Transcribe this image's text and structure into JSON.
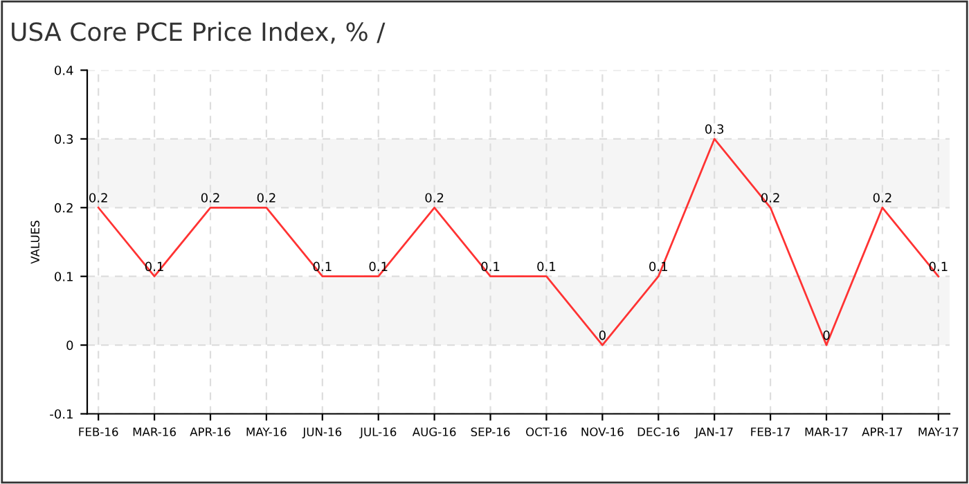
{
  "chart_data": {
    "type": "line",
    "title": "USA Core PCE Price Index, % /",
    "ylabel": "VALUES",
    "categories": [
      "FEB-16",
      "MAR-16",
      "APR-16",
      "MAY-16",
      "JUN-16",
      "JUL-16",
      "AUG-16",
      "SEP-16",
      "OCT-16",
      "NOV-16",
      "DEC-16",
      "JAN-17",
      "FEB-17",
      "MAR-17",
      "APR-17",
      "MAY-17"
    ],
    "series": [
      {
        "color": "#ff3333",
        "values": [
          0.2,
          0.1,
          0.2,
          0.2,
          0.1,
          0.1,
          0.2,
          0.1,
          0.1,
          0,
          0.1,
          0.3,
          0.2,
          0,
          0.2,
          0.1
        ]
      }
    ],
    "ylim": [
      -0.1,
      0.4
    ],
    "yticks": [
      -0.1,
      0,
      0.1,
      0.2,
      0.3,
      0.4
    ],
    "bands": [
      {
        "axis": "y",
        "from": 0,
        "to": 0.1,
        "color": "#f5f5f5"
      },
      {
        "axis": "y",
        "from": 0.2,
        "to": 0.3,
        "color": "#f5f5f5"
      }
    ],
    "grid": true,
    "data_labels": true,
    "marker": "none",
    "line_style": "solid",
    "legend": false
  }
}
